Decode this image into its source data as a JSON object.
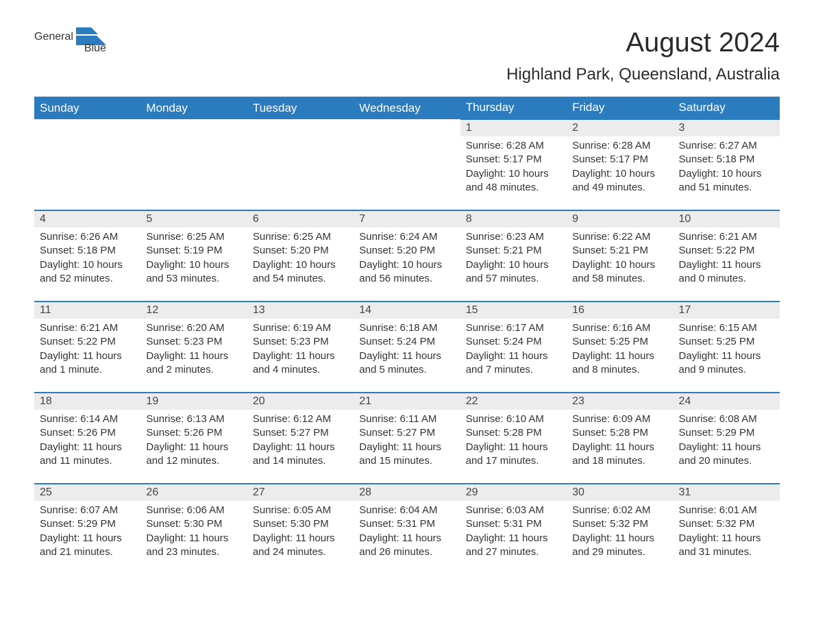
{
  "brand": {
    "part1": "General",
    "part2": "Blue",
    "accent_color": "#2b7bbf"
  },
  "header": {
    "month_title": "August 2024",
    "location": "Highland Park, Queensland, Australia"
  },
  "calendar": {
    "type": "table",
    "columns": [
      "Sunday",
      "Monday",
      "Tuesday",
      "Wednesday",
      "Thursday",
      "Friday",
      "Saturday"
    ],
    "header_bg": "#2b7bbf",
    "header_text_color": "#ffffff",
    "row_accent_color": "#2b7bbf",
    "daynum_bg": "#ececec",
    "text_color": "#333333",
    "weeks": [
      [
        null,
        null,
        null,
        null,
        {
          "n": "1",
          "sunrise": "Sunrise: 6:28 AM",
          "sunset": "Sunset: 5:17 PM",
          "day1": "Daylight: 10 hours",
          "day2": "and 48 minutes."
        },
        {
          "n": "2",
          "sunrise": "Sunrise: 6:28 AM",
          "sunset": "Sunset: 5:17 PM",
          "day1": "Daylight: 10 hours",
          "day2": "and 49 minutes."
        },
        {
          "n": "3",
          "sunrise": "Sunrise: 6:27 AM",
          "sunset": "Sunset: 5:18 PM",
          "day1": "Daylight: 10 hours",
          "day2": "and 51 minutes."
        }
      ],
      [
        {
          "n": "4",
          "sunrise": "Sunrise: 6:26 AM",
          "sunset": "Sunset: 5:18 PM",
          "day1": "Daylight: 10 hours",
          "day2": "and 52 minutes."
        },
        {
          "n": "5",
          "sunrise": "Sunrise: 6:25 AM",
          "sunset": "Sunset: 5:19 PM",
          "day1": "Daylight: 10 hours",
          "day2": "and 53 minutes."
        },
        {
          "n": "6",
          "sunrise": "Sunrise: 6:25 AM",
          "sunset": "Sunset: 5:20 PM",
          "day1": "Daylight: 10 hours",
          "day2": "and 54 minutes."
        },
        {
          "n": "7",
          "sunrise": "Sunrise: 6:24 AM",
          "sunset": "Sunset: 5:20 PM",
          "day1": "Daylight: 10 hours",
          "day2": "and 56 minutes."
        },
        {
          "n": "8",
          "sunrise": "Sunrise: 6:23 AM",
          "sunset": "Sunset: 5:21 PM",
          "day1": "Daylight: 10 hours",
          "day2": "and 57 minutes."
        },
        {
          "n": "9",
          "sunrise": "Sunrise: 6:22 AM",
          "sunset": "Sunset: 5:21 PM",
          "day1": "Daylight: 10 hours",
          "day2": "and 58 minutes."
        },
        {
          "n": "10",
          "sunrise": "Sunrise: 6:21 AM",
          "sunset": "Sunset: 5:22 PM",
          "day1": "Daylight: 11 hours",
          "day2": "and 0 minutes."
        }
      ],
      [
        {
          "n": "11",
          "sunrise": "Sunrise: 6:21 AM",
          "sunset": "Sunset: 5:22 PM",
          "day1": "Daylight: 11 hours",
          "day2": "and 1 minute."
        },
        {
          "n": "12",
          "sunrise": "Sunrise: 6:20 AM",
          "sunset": "Sunset: 5:23 PM",
          "day1": "Daylight: 11 hours",
          "day2": "and 2 minutes."
        },
        {
          "n": "13",
          "sunrise": "Sunrise: 6:19 AM",
          "sunset": "Sunset: 5:23 PM",
          "day1": "Daylight: 11 hours",
          "day2": "and 4 minutes."
        },
        {
          "n": "14",
          "sunrise": "Sunrise: 6:18 AM",
          "sunset": "Sunset: 5:24 PM",
          "day1": "Daylight: 11 hours",
          "day2": "and 5 minutes."
        },
        {
          "n": "15",
          "sunrise": "Sunrise: 6:17 AM",
          "sunset": "Sunset: 5:24 PM",
          "day1": "Daylight: 11 hours",
          "day2": "and 7 minutes."
        },
        {
          "n": "16",
          "sunrise": "Sunrise: 6:16 AM",
          "sunset": "Sunset: 5:25 PM",
          "day1": "Daylight: 11 hours",
          "day2": "and 8 minutes."
        },
        {
          "n": "17",
          "sunrise": "Sunrise: 6:15 AM",
          "sunset": "Sunset: 5:25 PM",
          "day1": "Daylight: 11 hours",
          "day2": "and 9 minutes."
        }
      ],
      [
        {
          "n": "18",
          "sunrise": "Sunrise: 6:14 AM",
          "sunset": "Sunset: 5:26 PM",
          "day1": "Daylight: 11 hours",
          "day2": "and 11 minutes."
        },
        {
          "n": "19",
          "sunrise": "Sunrise: 6:13 AM",
          "sunset": "Sunset: 5:26 PM",
          "day1": "Daylight: 11 hours",
          "day2": "and 12 minutes."
        },
        {
          "n": "20",
          "sunrise": "Sunrise: 6:12 AM",
          "sunset": "Sunset: 5:27 PM",
          "day1": "Daylight: 11 hours",
          "day2": "and 14 minutes."
        },
        {
          "n": "21",
          "sunrise": "Sunrise: 6:11 AM",
          "sunset": "Sunset: 5:27 PM",
          "day1": "Daylight: 11 hours",
          "day2": "and 15 minutes."
        },
        {
          "n": "22",
          "sunrise": "Sunrise: 6:10 AM",
          "sunset": "Sunset: 5:28 PM",
          "day1": "Daylight: 11 hours",
          "day2": "and 17 minutes."
        },
        {
          "n": "23",
          "sunrise": "Sunrise: 6:09 AM",
          "sunset": "Sunset: 5:28 PM",
          "day1": "Daylight: 11 hours",
          "day2": "and 18 minutes."
        },
        {
          "n": "24",
          "sunrise": "Sunrise: 6:08 AM",
          "sunset": "Sunset: 5:29 PM",
          "day1": "Daylight: 11 hours",
          "day2": "and 20 minutes."
        }
      ],
      [
        {
          "n": "25",
          "sunrise": "Sunrise: 6:07 AM",
          "sunset": "Sunset: 5:29 PM",
          "day1": "Daylight: 11 hours",
          "day2": "and 21 minutes."
        },
        {
          "n": "26",
          "sunrise": "Sunrise: 6:06 AM",
          "sunset": "Sunset: 5:30 PM",
          "day1": "Daylight: 11 hours",
          "day2": "and 23 minutes."
        },
        {
          "n": "27",
          "sunrise": "Sunrise: 6:05 AM",
          "sunset": "Sunset: 5:30 PM",
          "day1": "Daylight: 11 hours",
          "day2": "and 24 minutes."
        },
        {
          "n": "28",
          "sunrise": "Sunrise: 6:04 AM",
          "sunset": "Sunset: 5:31 PM",
          "day1": "Daylight: 11 hours",
          "day2": "and 26 minutes."
        },
        {
          "n": "29",
          "sunrise": "Sunrise: 6:03 AM",
          "sunset": "Sunset: 5:31 PM",
          "day1": "Daylight: 11 hours",
          "day2": "and 27 minutes."
        },
        {
          "n": "30",
          "sunrise": "Sunrise: 6:02 AM",
          "sunset": "Sunset: 5:32 PM",
          "day1": "Daylight: 11 hours",
          "day2": "and 29 minutes."
        },
        {
          "n": "31",
          "sunrise": "Sunrise: 6:01 AM",
          "sunset": "Sunset: 5:32 PM",
          "day1": "Daylight: 11 hours",
          "day2": "and 31 minutes."
        }
      ]
    ]
  }
}
